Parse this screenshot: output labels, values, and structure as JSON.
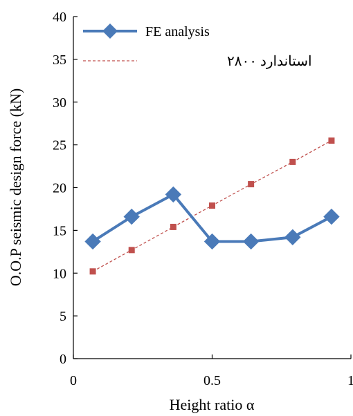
{
  "chart_data": {
    "type": "line",
    "xlabel": "Height ratio α",
    "ylabel": "O.O.P seismic design force (kN)",
    "xlim": [
      0,
      1
    ],
    "ylim": [
      0,
      40
    ],
    "x_ticks": [
      "0",
      "0.5",
      "1"
    ],
    "y_ticks": [
      "0",
      "5",
      "10",
      "15",
      "20",
      "25",
      "30",
      "35",
      "40"
    ],
    "grid": false,
    "legend_position": "top-left",
    "series": [
      {
        "name": "FE analysis",
        "style": "solid-line-diamond-markers",
        "color": "#4a7ab8",
        "x": [
          0.07,
          0.21,
          0.36,
          0.5,
          0.64,
          0.79,
          0.93
        ],
        "y": [
          13.7,
          16.6,
          19.2,
          13.7,
          13.7,
          14.2,
          16.6
        ]
      },
      {
        "name": "استاندارد ۲۸۰۰",
        "style": "dashed-line-square-markers",
        "color": "#c0504d",
        "x": [
          0.07,
          0.21,
          0.36,
          0.5,
          0.64,
          0.79,
          0.93
        ],
        "y": [
          10.2,
          12.7,
          15.4,
          17.9,
          20.4,
          23.0,
          25.5
        ]
      }
    ]
  }
}
